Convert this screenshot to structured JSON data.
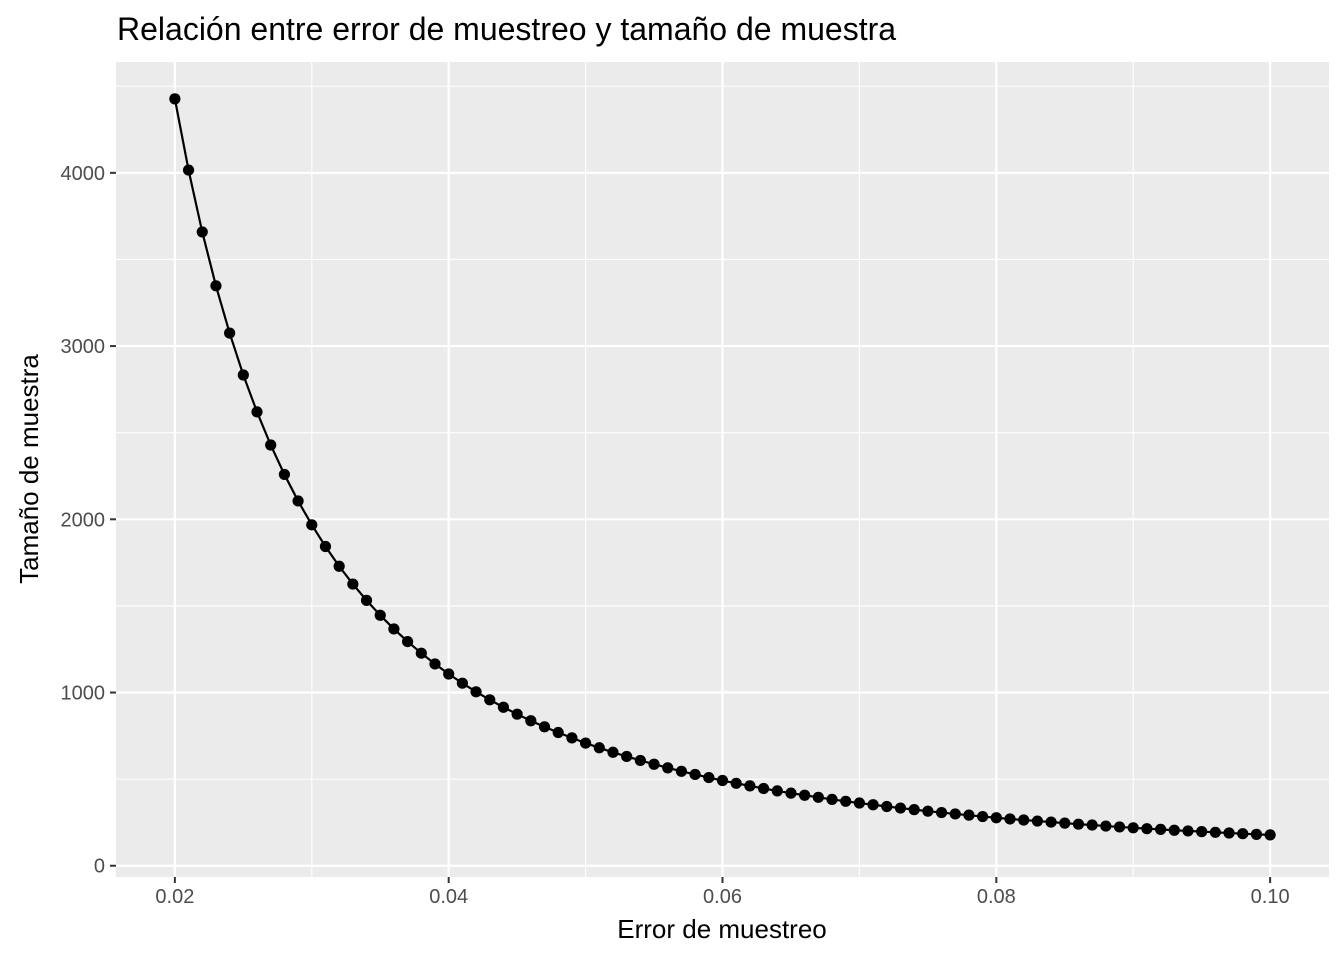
{
  "chart_data": {
    "type": "line",
    "title": "Relación entre error de muestreo y tamaño de muestra",
    "xlabel": "Error de muestreo",
    "ylabel": "Tamaño de muestra",
    "xlim": [
      0.0157,
      0.1043
    ],
    "ylim": [
      -65,
      4640
    ],
    "x_ticks": [
      0.02,
      0.04,
      0.06,
      0.08,
      0.1
    ],
    "x_tick_labels": [
      "0.02",
      "0.04",
      "0.06",
      "0.08",
      "0.10"
    ],
    "y_ticks": [
      0,
      1000,
      2000,
      3000,
      4000
    ],
    "y_tick_labels": [
      "0",
      "1000",
      "2000",
      "3000",
      "4000"
    ],
    "grid": true,
    "legend": "none",
    "colors": {
      "panel": "#ebebeb",
      "grid": "#ffffff",
      "series": "#000000"
    },
    "series": [
      {
        "x": [
          0.02,
          0.021,
          0.022,
          0.023,
          0.024,
          0.025,
          0.026,
          0.027,
          0.028,
          0.029,
          0.03,
          0.031,
          0.032,
          0.033,
          0.034,
          0.035,
          0.036,
          0.037,
          0.038,
          0.039,
          0.04,
          0.041,
          0.042,
          0.043,
          0.044,
          0.045,
          0.046,
          0.047,
          0.048,
          0.049,
          0.05,
          0.051,
          0.052,
          0.053,
          0.054,
          0.055,
          0.056,
          0.057,
          0.058,
          0.059,
          0.06,
          0.061,
          0.062,
          0.063,
          0.064,
          0.065,
          0.066,
          0.067,
          0.068,
          0.069,
          0.07,
          0.071,
          0.072,
          0.073,
          0.074,
          0.075,
          0.076,
          0.077,
          0.078,
          0.079,
          0.08,
          0.081,
          0.082,
          0.083,
          0.084,
          0.085,
          0.086,
          0.087,
          0.088,
          0.089,
          0.09,
          0.091,
          0.092,
          0.093,
          0.094,
          0.095,
          0.096,
          0.097,
          0.098,
          0.099,
          0.1
        ],
        "values": [
          4427,
          4016,
          3659,
          3348,
          3075,
          2833,
          2620,
          2429,
          2259,
          2106,
          1968,
          1843,
          1729,
          1626,
          1532,
          1446,
          1367,
          1294,
          1227,
          1165,
          1107,
          1054,
          1004,
          958,
          915,
          875,
          837,
          802,
          769,
          738,
          708,
          681,
          655,
          631,
          608,
          586,
          565,
          545,
          527,
          509,
          492,
          476,
          461,
          446,
          432,
          419,
          407,
          395,
          383,
          372,
          362,
          352,
          342,
          333,
          324,
          315,
          307,
          299,
          292,
          284,
          277,
          270,
          264,
          258,
          252,
          246,
          240,
          235,
          229,
          224,
          219,
          214,
          210,
          205,
          201,
          197,
          193,
          189,
          185,
          181,
          178
        ]
      }
    ]
  }
}
